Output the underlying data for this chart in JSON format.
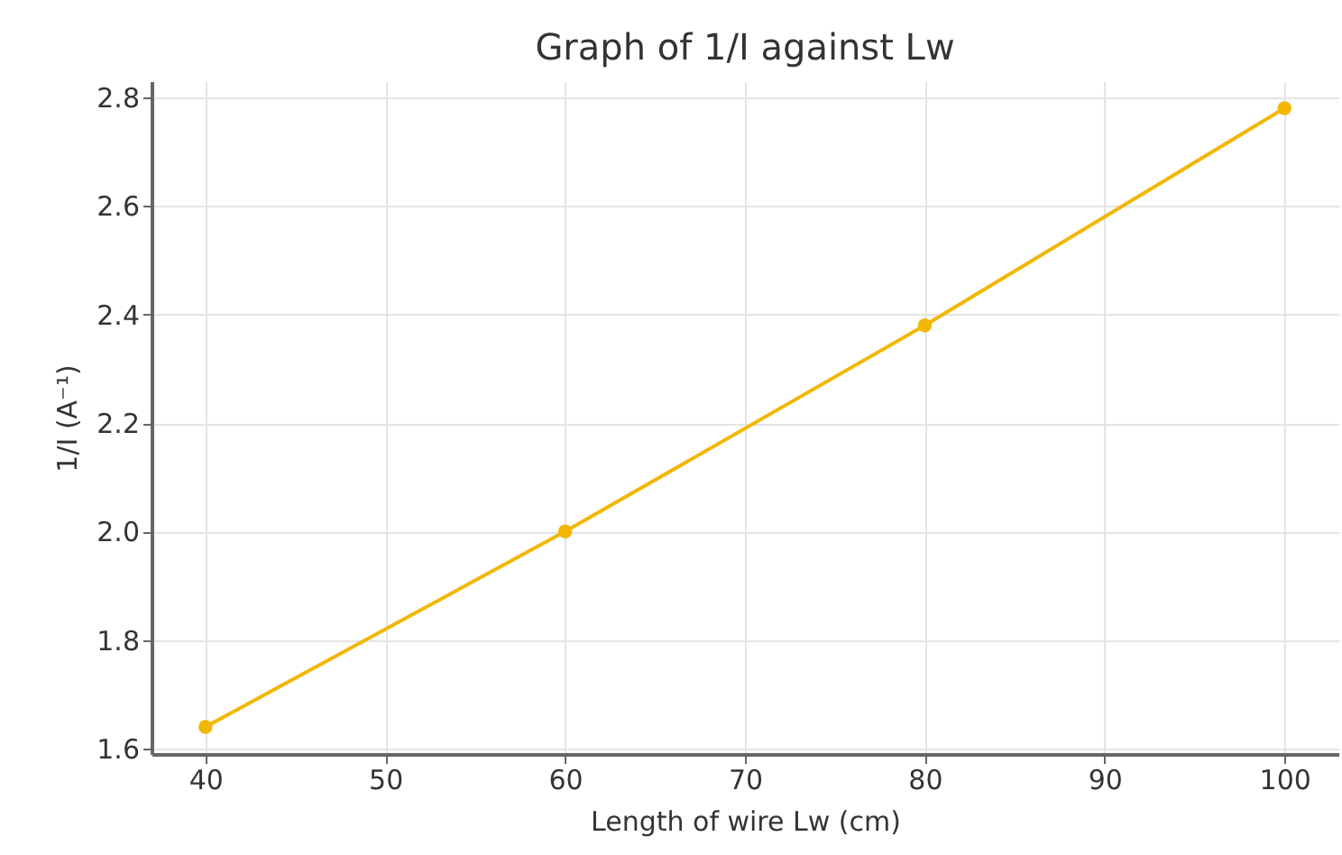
{
  "chart_data": {
    "type": "line",
    "title": "Graph of 1/I against Lw",
    "xlabel": "Length of wire Lw (cm)",
    "ylabel": "1/I (A⁻¹)",
    "x": [
      40,
      60,
      80,
      100
    ],
    "series": [
      {
        "color": "#f2b705",
        "values": [
          1.64,
          2.0,
          2.38,
          2.78
        ]
      }
    ],
    "xlim": [
      37,
      103
    ],
    "ylim": [
      1.59,
      2.83
    ],
    "xticks": [
      40,
      50,
      60,
      70,
      80,
      90,
      100
    ],
    "yticks": [
      1.6,
      1.8,
      {
        "value": 2,
        "label": "2.0"
      },
      2.2,
      2.4,
      2.6,
      2.8
    ],
    "grid": true,
    "marker": "circle",
    "line_style": "solid"
  }
}
